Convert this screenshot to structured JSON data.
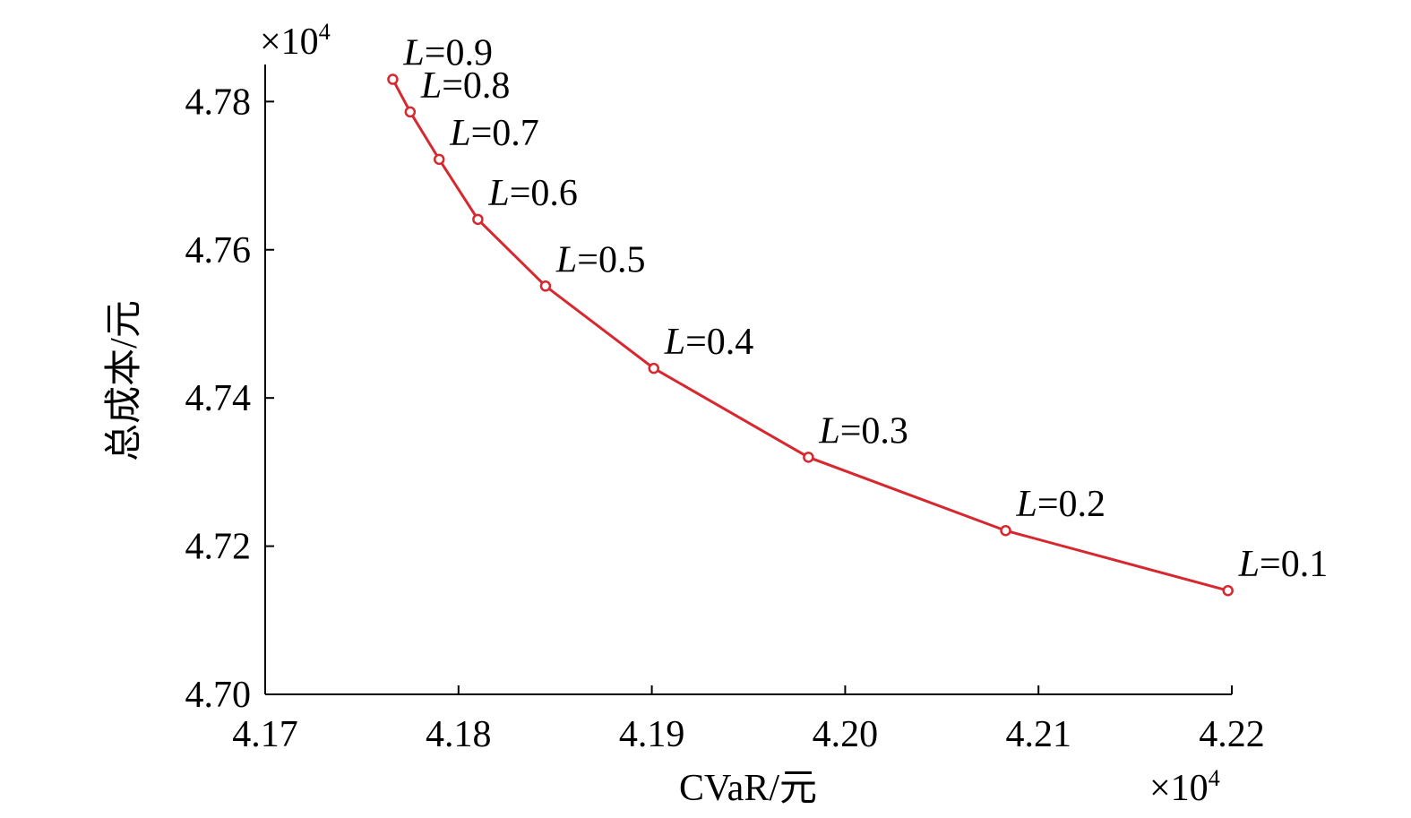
{
  "chart_data": {
    "type": "line",
    "title": "",
    "xlabel": "CVaR/元",
    "ylabel": "总成本/元",
    "x_multiplier": {
      "prefix": "×10",
      "exp": "4"
    },
    "y_multiplier": {
      "prefix": "×10",
      "exp": "4"
    },
    "xlim": [
      4.17,
      4.22
    ],
    "ylim": [
      4.7,
      4.785
    ],
    "x_ticks": [
      4.17,
      4.18,
      4.19,
      4.2,
      4.21,
      4.22
    ],
    "x_tick_labels": [
      "4.17",
      "4.18",
      "4.19",
      "4.20",
      "4.21",
      "4.22"
    ],
    "y_ticks": [
      4.7,
      4.72,
      4.74,
      4.76,
      4.78
    ],
    "y_tick_labels": [
      "4.70",
      "4.72",
      "4.74",
      "4.76",
      "4.78"
    ],
    "grid": false,
    "series": [
      {
        "color": "#d7282f",
        "marker": "circle",
        "points": [
          {
            "x": 4.1766,
            "y": 4.783,
            "label_var": "L",
            "label_val": "=0.9"
          },
          {
            "x": 4.1775,
            "y": 4.7786,
            "label_var": "L",
            "label_val": "=0.8"
          },
          {
            "x": 4.179,
            "y": 4.7722,
            "label_var": "L",
            "label_val": "=0.7"
          },
          {
            "x": 4.181,
            "y": 4.7641,
            "label_var": "L",
            "label_val": "=0.6"
          },
          {
            "x": 4.1845,
            "y": 4.7551,
            "label_var": "L",
            "label_val": "=0.5"
          },
          {
            "x": 4.1901,
            "y": 4.744,
            "label_var": "L",
            "label_val": "=0.4"
          },
          {
            "x": 4.1981,
            "y": 4.732,
            "label_var": "L",
            "label_val": "=0.3"
          },
          {
            "x": 4.2083,
            "y": 4.7221,
            "label_var": "L",
            "label_val": "=0.2"
          },
          {
            "x": 4.2198,
            "y": 4.714,
            "label_var": "L",
            "label_val": "=0.1"
          }
        ]
      }
    ]
  }
}
